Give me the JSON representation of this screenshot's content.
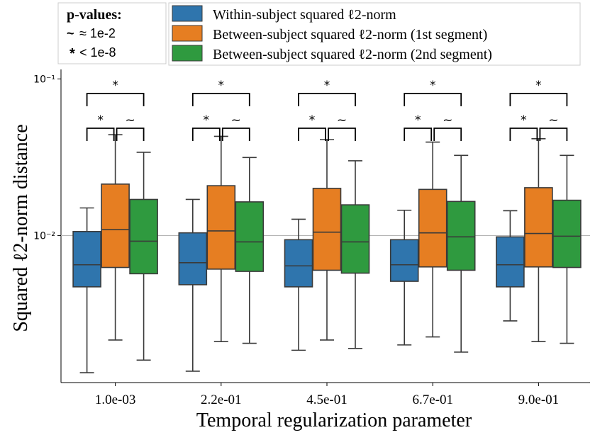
{
  "pvalue_legend": {
    "title": "p-values:",
    "rows": [
      {
        "symbol": "~",
        "text": "≈ 1e-2"
      },
      {
        "symbol": "*",
        "text": "< 1e-8"
      }
    ]
  },
  "colors": {
    "within": "#2f75ad",
    "between1": "#e67e22",
    "between2": "#2f9a3f",
    "edge": "#3a3a3a",
    "refline": "#b5b5b5"
  },
  "chart_data": {
    "type": "box",
    "xlabel": "Temporal regularization parameter",
    "ylabel": "Squared ℓ2-norm distance",
    "yscale": "log",
    "ylim": [
      0.00115,
      0.115
    ],
    "yticks": [
      {
        "value": 0.1,
        "label": "10⁻¹"
      },
      {
        "value": 0.01,
        "label": "10⁻²"
      }
    ],
    "reference_line": 0.01,
    "categories": [
      "1.0e-03",
      "2.2e-01",
      "4.5e-01",
      "6.7e-01",
      "9.0e-01"
    ],
    "series": [
      {
        "name": "Within-subject squared ℓ2-norm",
        "color_key": "within",
        "boxes": [
          {
            "whislo": 0.00133,
            "q1": 0.0047,
            "med": 0.0065,
            "q3": 0.0106,
            "whishi": 0.015
          },
          {
            "whislo": 0.00136,
            "q1": 0.00485,
            "med": 0.0067,
            "q3": 0.0104,
            "whishi": 0.017
          },
          {
            "whislo": 0.00185,
            "q1": 0.0047,
            "med": 0.0064,
            "q3": 0.0094,
            "whishi": 0.0127
          },
          {
            "whislo": 0.002,
            "q1": 0.0051,
            "med": 0.0065,
            "q3": 0.0094,
            "whishi": 0.0145
          },
          {
            "whislo": 0.00285,
            "q1": 0.0047,
            "med": 0.0065,
            "q3": 0.0098,
            "whishi": 0.0144
          }
        ]
      },
      {
        "name": "Between-subject squared ℓ2-norm (1st segment)",
        "color_key": "between1",
        "boxes": [
          {
            "whislo": 0.00215,
            "q1": 0.00625,
            "med": 0.0109,
            "q3": 0.0213,
            "whishi": 0.044
          },
          {
            "whislo": 0.0021,
            "q1": 0.0061,
            "med": 0.0107,
            "q3": 0.0208,
            "whishi": 0.043
          },
          {
            "whislo": 0.00215,
            "q1": 0.006,
            "med": 0.0105,
            "q3": 0.02,
            "whishi": 0.041
          },
          {
            "whislo": 0.00225,
            "q1": 0.0063,
            "med": 0.0104,
            "q3": 0.0197,
            "whishi": 0.0395
          },
          {
            "whislo": 0.0021,
            "q1": 0.0063,
            "med": 0.0103,
            "q3": 0.0202,
            "whishi": 0.0415
          }
        ]
      },
      {
        "name": "Between-subject squared ℓ2-norm (2nd segment)",
        "color_key": "between2",
        "boxes": [
          {
            "whislo": 0.0016,
            "q1": 0.0057,
            "med": 0.0092,
            "q3": 0.017,
            "whishi": 0.034
          },
          {
            "whislo": 0.00205,
            "q1": 0.0059,
            "med": 0.0091,
            "q3": 0.0164,
            "whishi": 0.0315
          },
          {
            "whislo": 0.0019,
            "q1": 0.00575,
            "med": 0.0091,
            "q3": 0.0157,
            "whishi": 0.03
          },
          {
            "whislo": 0.0018,
            "q1": 0.006,
            "med": 0.0098,
            "q3": 0.0165,
            "whishi": 0.0325
          },
          {
            "whislo": 0.00205,
            "q1": 0.00625,
            "med": 0.0099,
            "q3": 0.0168,
            "whishi": 0.0325
          }
        ]
      }
    ],
    "significance": [
      {
        "pair": [
          0,
          2
        ],
        "symbol": "*"
      },
      {
        "pair": [
          0,
          1
        ],
        "symbol": "*"
      },
      {
        "pair": [
          1,
          2
        ],
        "symbol": "~"
      }
    ]
  }
}
